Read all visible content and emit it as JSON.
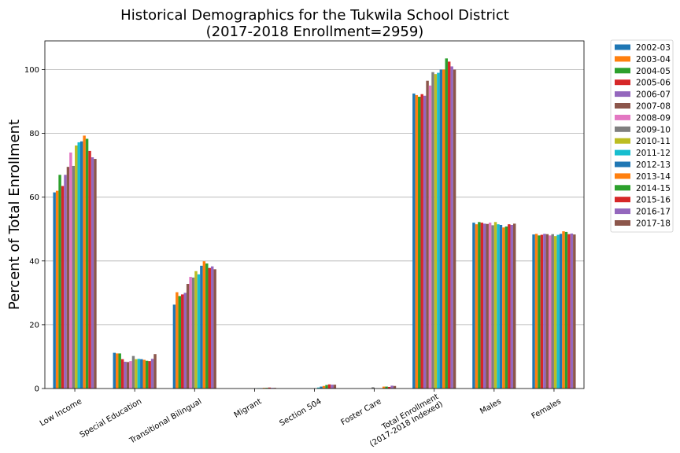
{
  "chart_data": {
    "type": "bar",
    "title": "Historical Demographics for the Tukwila School District",
    "subtitle": "(2017-2018 Enrollment=2959)",
    "ylabel": "Percent of Total Enrollment",
    "xlabel": "",
    "ylim": [
      0,
      109
    ],
    "yticks": [
      0,
      20,
      40,
      60,
      80,
      100
    ],
    "grid": "horizontal",
    "legend_position": "outside-right",
    "categories": [
      "Low Income",
      "Special Education",
      "Transitional Bilingual",
      "Migrant",
      "Section 504",
      "Foster Care",
      "Total Enrollment\n(2017-2018 Indexed)",
      "Males",
      "Females"
    ],
    "series": [
      {
        "name": "2002-03",
        "color": "#1f77b4",
        "values": [
          61.5,
          11.2,
          26.3,
          0.0,
          0.0,
          0.0,
          92.5,
          52.0,
          48.3
        ]
      },
      {
        "name": "2003-04",
        "color": "#ff7f0e",
        "values": [
          62.0,
          11.0,
          30.2,
          0.0,
          0.0,
          0.0,
          92.0,
          51.5,
          48.5
        ]
      },
      {
        "name": "2004-05",
        "color": "#2ca02c",
        "values": [
          67.0,
          11.0,
          29.0,
          0.0,
          0.0,
          0.0,
          91.5,
          52.2,
          48.0
        ]
      },
      {
        "name": "2005-06",
        "color": "#d62728",
        "values": [
          63.5,
          9.2,
          29.5,
          0.0,
          0.0,
          0.0,
          92.3,
          52.0,
          48.2
        ]
      },
      {
        "name": "2006-07",
        "color": "#9467bd",
        "values": [
          67.0,
          8.4,
          30.0,
          0.0,
          0.0,
          0.0,
          91.8,
          51.7,
          48.5
        ]
      },
      {
        "name": "2007-08",
        "color": "#8c564b",
        "values": [
          69.5,
          8.3,
          32.8,
          0.0,
          0.0,
          0.0,
          96.5,
          51.6,
          48.4
        ]
      },
      {
        "name": "2008-09",
        "color": "#e377c2",
        "values": [
          74.0,
          8.6,
          35.0,
          0.0,
          0.0,
          0.0,
          95.0,
          52.0,
          48.0
        ]
      },
      {
        "name": "2009-10",
        "color": "#7f7f7f",
        "values": [
          69.8,
          10.2,
          34.8,
          0.0,
          0.0,
          0.4,
          99.2,
          51.2,
          48.4
        ]
      },
      {
        "name": "2010-11",
        "color": "#bcbd22",
        "values": [
          76.2,
          9.2,
          36.8,
          0.0,
          0.0,
          0.0,
          98.6,
          52.2,
          47.8
        ]
      },
      {
        "name": "2011-12",
        "color": "#17becf",
        "values": [
          77.2,
          9.3,
          35.8,
          0.1,
          0.3,
          0.0,
          99.0,
          51.5,
          48.2
        ]
      },
      {
        "name": "2012-13",
        "color": "#1f77b4",
        "values": [
          77.5,
          9.2,
          38.5,
          0.1,
          0.6,
          0.0,
          100.0,
          51.3,
          48.5
        ]
      },
      {
        "name": "2013-14",
        "color": "#ff7f0e",
        "values": [
          79.3,
          9.0,
          39.9,
          0.2,
          0.8,
          0.6,
          100.0,
          50.5,
          49.3
        ]
      },
      {
        "name": "2014-15",
        "color": "#2ca02c",
        "values": [
          78.3,
          8.7,
          39.2,
          0.2,
          1.1,
          0.6,
          103.5,
          50.8,
          49.1
        ]
      },
      {
        "name": "2015-16",
        "color": "#d62728",
        "values": [
          74.5,
          8.6,
          37.8,
          0.3,
          1.3,
          0.5,
          102.5,
          51.5,
          48.4
        ]
      },
      {
        "name": "2016-17",
        "color": "#9467bd",
        "values": [
          72.5,
          9.3,
          38.3,
          0.2,
          1.2,
          0.9,
          101.0,
          51.3,
          48.6
        ]
      },
      {
        "name": "2017-18",
        "color": "#8c564b",
        "values": [
          72.0,
          10.8,
          37.4,
          0.2,
          1.2,
          0.8,
          100.0,
          51.7,
          48.3
        ]
      }
    ]
  }
}
